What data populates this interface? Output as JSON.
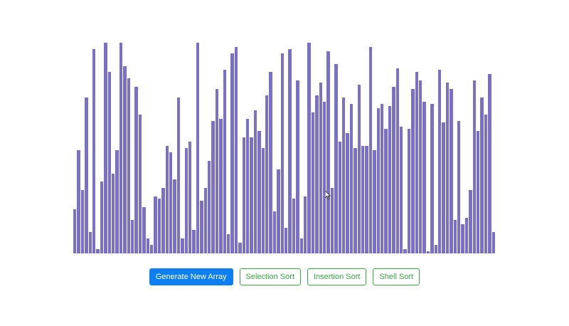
{
  "colors": {
    "bar": "#7a70c8",
    "primary": "#0d7ff0",
    "outline": "#38a845",
    "background": "#ffffff"
  },
  "array": {
    "max_value": 100,
    "values": [
      21,
      49,
      30,
      74,
      10,
      97,
      2,
      34,
      100,
      86,
      38,
      49,
      100,
      89,
      83,
      16,
      79,
      66,
      22,
      7,
      4,
      27,
      26,
      31,
      51,
      48,
      35,
      74,
      7,
      50,
      53,
      11,
      100,
      25,
      31,
      44,
      63,
      78,
      64,
      87,
      9,
      95,
      98,
      5,
      55,
      64,
      55,
      68,
      58,
      50,
      75,
      86,
      20,
      40,
      95,
      12,
      97,
      26,
      82,
      7,
      27,
      100,
      67,
      75,
      81,
      72,
      96,
      31,
      90,
      53,
      74,
      57,
      71,
      50,
      80,
      51,
      51,
      98,
      49,
      69,
      71,
      59,
      70,
      79,
      88,
      60,
      2,
      59,
      78,
      86,
      82,
      72,
      1,
      71,
      4,
      87,
      62,
      81,
      78,
      16,
      63,
      14,
      17,
      30,
      82,
      58,
      74,
      66,
      85,
      10
    ]
  },
  "toolbar": {
    "generate_label": "Generate New Array",
    "selection_label": "Selection Sort",
    "insertion_label": "Insertion Sort",
    "shell_label": "Shell Sort"
  }
}
